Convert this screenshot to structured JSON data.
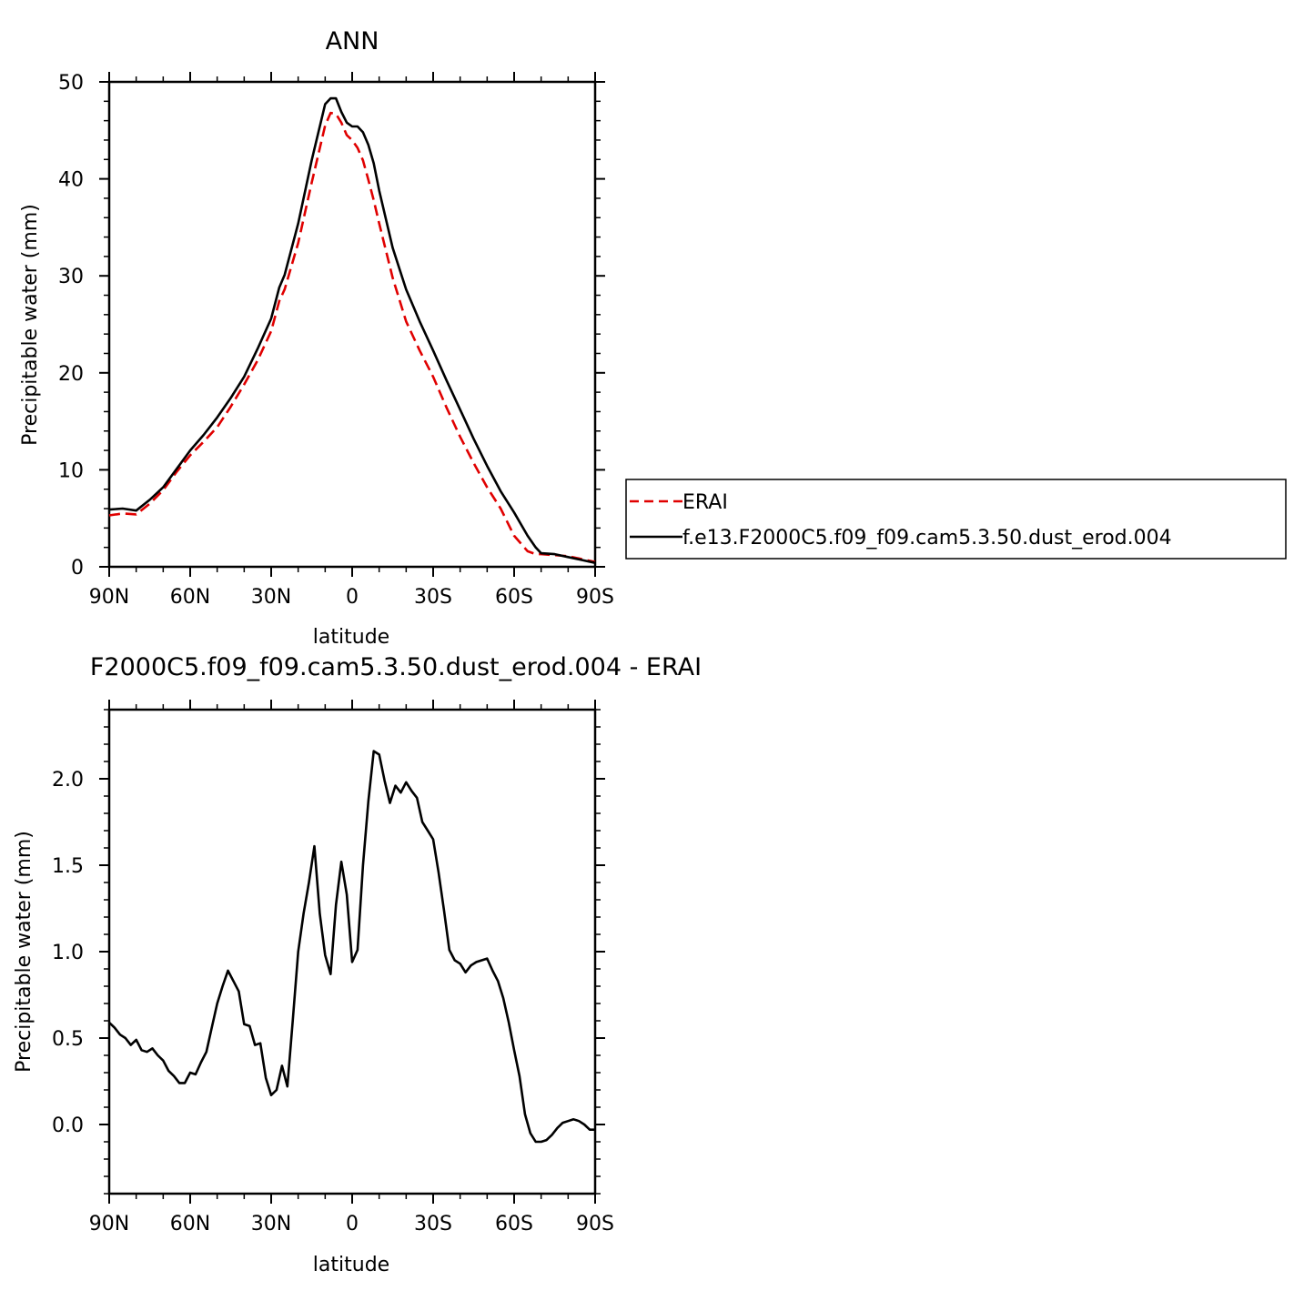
{
  "chart_data": [
    {
      "type": "line",
      "title": "ANN",
      "xlabel": "latitude",
      "ylabel": "Precipitable water (mm)",
      "xlim": [
        90,
        -90
      ],
      "ylim": [
        0,
        50
      ],
      "x_tick_values": [
        90,
        60,
        30,
        0,
        -30,
        -60,
        -90
      ],
      "x_tick_labels": [
        "90N",
        "60N",
        "30N",
        "0",
        "30S",
        "60S",
        "90S"
      ],
      "y_tick_values": [
        0,
        10,
        20,
        30,
        40,
        50
      ],
      "y_tick_labels": [
        "0",
        "10",
        "20",
        "30",
        "40",
        "50"
      ],
      "legend": "right",
      "grid": false,
      "series": [
        {
          "name": "ERAI",
          "color": "#e00000",
          "style": "dashed",
          "x": [
            90,
            85,
            80,
            75,
            70,
            65,
            60,
            55,
            50,
            45,
            40,
            35,
            30,
            27,
            25,
            20,
            15,
            10,
            8,
            6,
            4,
            2,
            0,
            -2,
            -4,
            -6,
            -8,
            -10,
            -15,
            -20,
            -25,
            -30,
            -35,
            -40,
            -45,
            -50,
            -55,
            -60,
            -65,
            -68,
            -70,
            -75,
            -80,
            -85,
            -90
          ],
          "y": [
            5.3,
            5.5,
            5.4,
            6.5,
            7.9,
            9.8,
            11.5,
            12.9,
            14.4,
            16.5,
            18.8,
            21.3,
            24.3,
            27.4,
            28.6,
            33.4,
            39.6,
            45.5,
            46.8,
            46.7,
            45.8,
            44.5,
            44.0,
            43.2,
            41.9,
            39.9,
            37.8,
            35.4,
            29.8,
            25.3,
            22.3,
            19.6,
            16.4,
            13.4,
            10.7,
            8.2,
            6.0,
            3.2,
            1.6,
            1.3,
            1.3,
            1.2,
            1.1,
            0.8,
            0.5
          ]
        },
        {
          "name": "f.e13.F2000C5.f09_f09.cam5.3.50.dust_erod.004",
          "color": "#000000",
          "style": "solid",
          "x": [
            90,
            85,
            80,
            75,
            70,
            65,
            60,
            55,
            50,
            45,
            40,
            35,
            30,
            27,
            25,
            20,
            15,
            10,
            8,
            6,
            4,
            2,
            0,
            -2,
            -4,
            -6,
            -8,
            -10,
            -15,
            -20,
            -25,
            -30,
            -35,
            -40,
            -45,
            -50,
            -55,
            -60,
            -65,
            -68,
            -70,
            -75,
            -80,
            -85,
            -90
          ],
          "y": [
            5.9,
            6.0,
            5.8,
            6.9,
            8.2,
            10.1,
            12.0,
            13.6,
            15.4,
            17.4,
            19.6,
            22.5,
            25.6,
            28.8,
            30.1,
            35.4,
            41.9,
            47.7,
            48.3,
            48.3,
            46.9,
            45.8,
            45.4,
            45.4,
            44.8,
            43.5,
            41.6,
            38.8,
            32.9,
            28.6,
            25.3,
            22.3,
            19.2,
            16.2,
            13.2,
            10.4,
            7.8,
            5.6,
            3.2,
            2.0,
            1.4,
            1.3,
            1.0,
            0.7,
            0.4
          ]
        }
      ]
    },
    {
      "type": "line",
      "title": "F2000C5.f09_f09.cam5.3.50.dust_erod.004 - ERAI",
      "xlabel": "latitude",
      "ylabel": "Precipitable water (mm)",
      "xlim": [
        90,
        -90
      ],
      "ylim": [
        -0.4,
        2.4
      ],
      "x_tick_values": [
        90,
        60,
        30,
        0,
        -30,
        -60,
        -90
      ],
      "x_tick_labels": [
        "90N",
        "60N",
        "30N",
        "0",
        "30S",
        "60S",
        "90S"
      ],
      "y_tick_values": [
        0.0,
        0.5,
        1.0,
        1.5,
        2.0
      ],
      "y_tick_labels": [
        "0.0",
        "0.5",
        "1.0",
        "1.5",
        "2.0"
      ],
      "grid": false,
      "series": [
        {
          "color": "#000000",
          "style": "solid",
          "x": [
            90,
            88,
            86,
            84,
            82,
            80,
            78,
            76,
            74,
            72,
            70,
            68,
            66,
            64,
            62,
            60,
            58,
            56,
            54,
            52,
            50,
            48,
            46,
            44,
            42,
            40,
            38,
            36,
            34,
            32,
            30,
            28,
            26,
            24,
            22,
            20,
            18,
            16,
            14,
            12,
            10,
            8,
            6,
            4,
            2,
            0,
            -2,
            -4,
            -6,
            -8,
            -10,
            -12,
            -14,
            -16,
            -18,
            -20,
            -22,
            -24,
            -26,
            -28,
            -30,
            -32,
            -34,
            -36,
            -38,
            -40,
            -42,
            -44,
            -46,
            -48,
            -50,
            -52,
            -54,
            -56,
            -58,
            -60,
            -62,
            -64,
            -66,
            -68,
            -70,
            -72,
            -74,
            -76,
            -78,
            -80,
            -82,
            -84,
            -86,
            -88,
            -90
          ],
          "y": [
            0.59,
            0.56,
            0.52,
            0.5,
            0.46,
            0.49,
            0.43,
            0.42,
            0.44,
            0.4,
            0.37,
            0.31,
            0.28,
            0.24,
            0.24,
            0.3,
            0.29,
            0.36,
            0.42,
            0.56,
            0.7,
            0.8,
            0.89,
            0.83,
            0.77,
            0.58,
            0.57,
            0.46,
            0.47,
            0.27,
            0.17,
            0.2,
            0.34,
            0.22,
            0.6,
            1.0,
            1.22,
            1.4,
            1.61,
            1.22,
            0.98,
            0.87,
            1.27,
            1.52,
            1.33,
            0.94,
            1.01,
            1.5,
            1.87,
            2.16,
            2.14,
            1.99,
            1.86,
            1.96,
            1.92,
            1.98,
            1.93,
            1.89,
            1.75,
            1.7,
            1.65,
            1.46,
            1.24,
            1.01,
            0.95,
            0.93,
            0.88,
            0.92,
            0.94,
            0.95,
            0.96,
            0.89,
            0.83,
            0.73,
            0.59,
            0.43,
            0.28,
            0.06,
            -0.05,
            -0.1,
            -0.1,
            -0.09,
            -0.06,
            -0.02,
            0.01,
            0.02,
            0.03,
            0.02,
            0.0,
            -0.03,
            -0.03
          ]
        }
      ]
    }
  ]
}
